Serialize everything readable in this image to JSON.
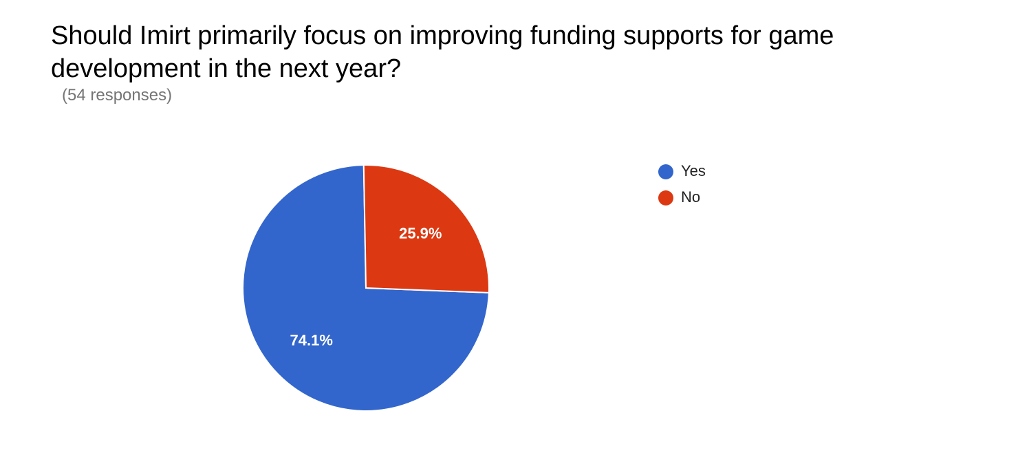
{
  "question": {
    "title": "Should Imirt primarily focus on improving funding supports for game development in the next year?",
    "response_count": "(54 responses)"
  },
  "chart_data": {
    "type": "pie",
    "title": "",
    "categories": [
      "Yes",
      "No"
    ],
    "values": [
      74.1,
      25.9
    ],
    "labels": [
      "74.1%",
      "25.9%"
    ],
    "colors": [
      "#3366cc",
      "#dc3912"
    ],
    "legend_position": "right"
  }
}
